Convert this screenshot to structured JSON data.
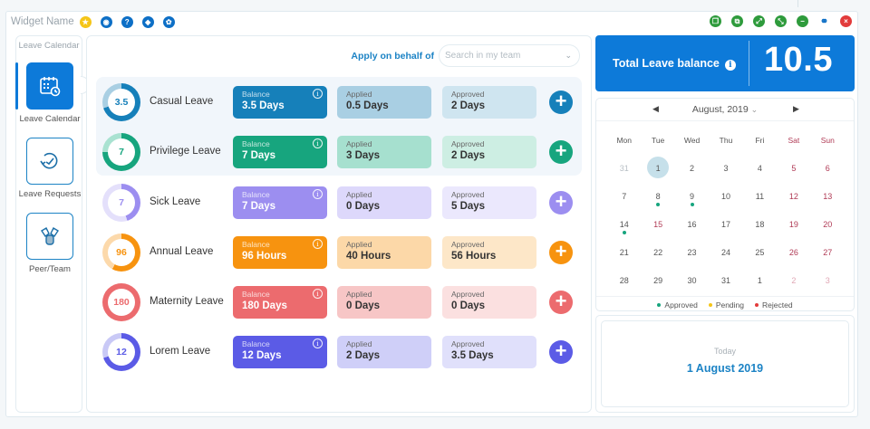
{
  "window": {
    "title": "Widget Name",
    "left_icons": [
      {
        "name": "favorite-icon",
        "color": "#f5c518",
        "glyph": "★"
      },
      {
        "name": "camera-icon",
        "color": "#0d6fc6",
        "glyph": "◉"
      },
      {
        "name": "help-icon",
        "color": "#0d6fc6",
        "glyph": "?"
      },
      {
        "name": "tag-icon",
        "color": "#0d6fc6",
        "glyph": "◆"
      },
      {
        "name": "settings-icon",
        "color": "#0d6fc6",
        "glyph": "✿"
      }
    ],
    "right_icons": [
      {
        "name": "restore-icon",
        "color": "#2e9b3c",
        "glyph": "❐"
      },
      {
        "name": "copy-icon",
        "color": "#2e9b3c",
        "glyph": "⧉"
      },
      {
        "name": "expand-icon",
        "color": "#2e9b3c",
        "glyph": "⤢"
      },
      {
        "name": "collapse-icon",
        "color": "#2e9b3c",
        "glyph": "⤡"
      },
      {
        "name": "minimize-icon",
        "color": "#2e9b3c",
        "glyph": "−"
      },
      {
        "name": "link-icon",
        "color": "#ffffff",
        "glyph": "⚭"
      },
      {
        "name": "close-icon",
        "color": "#e23b3b",
        "glyph": "×"
      }
    ]
  },
  "sidebar": {
    "title": "Leave Calendar",
    "items": [
      {
        "label": "Leave Calendar",
        "active": true
      },
      {
        "label": "Leave Requests",
        "active": false
      },
      {
        "label": "Peer/Team",
        "active": false
      }
    ]
  },
  "main": {
    "apply_label": "Apply on behalf of",
    "search_placeholder": "Search in my team",
    "labels": {
      "balance": "Balance",
      "applied": "Applied",
      "approved": "Approved"
    },
    "leaves": [
      {
        "name": "Casual Leave",
        "ring_value": "3.5",
        "balance": "3.5 Days",
        "applied": "0.5 Days",
        "approved": "2 Days",
        "color": "#1680ba",
        "ring_light": "#a9cfe3",
        "applied_bg": "#a9cfe3",
        "approved_bg": "#cfe5f0",
        "ring_pct": 70
      },
      {
        "name": "Privilege Leave",
        "ring_value": "7",
        "balance": "7 Days",
        "applied": "3 Days",
        "approved": "2 Days",
        "color": "#17a57e",
        "ring_light": "#a9e2d1",
        "applied_bg": "#a6e0cf",
        "approved_bg": "#cdeee3",
        "ring_pct": 75
      },
      {
        "name": "Sick Leave",
        "ring_value": "7",
        "balance": "7 Days",
        "applied": "0 Days",
        "approved": "5 Days",
        "color": "#9c8ef0",
        "ring_light": "#e4e0fb",
        "applied_bg": "#ddd8fb",
        "approved_bg": "#ebe8fd",
        "ring_pct": 45
      },
      {
        "name": "Annual Leave",
        "ring_value": "96",
        "balance": "96 Hours",
        "applied": "40 Hours",
        "approved": "56 Hours",
        "color": "#f7930f",
        "ring_light": "#fcd9ab",
        "applied_bg": "#fcd8a8",
        "approved_bg": "#fde7c8",
        "ring_pct": 58
      },
      {
        "name": "Maternity Leave",
        "ring_value": "180",
        "balance": "180 Days",
        "applied": "0 Days",
        "approved": "0 Days",
        "color": "#ec6b6e",
        "ring_light": "#f7c4c5",
        "applied_bg": "#f7c6c6",
        "approved_bg": "#fbe0e0",
        "ring_pct": 100
      },
      {
        "name": "Lorem Leave",
        "ring_value": "12",
        "balance": "12 Days",
        "applied": "2 Days",
        "approved": "3.5 Days",
        "color": "#5b5be6",
        "ring_light": "#c9c9f6",
        "applied_bg": "#cfcff8",
        "approved_bg": "#e0e0fb",
        "ring_pct": 70
      }
    ]
  },
  "summary": {
    "total_label": "Total Leave balance",
    "total_value": "10.5"
  },
  "calendar": {
    "month_label": "August, 2019",
    "weekdays": [
      "Mon",
      "Tue",
      "Wed",
      "Thu",
      "Fri",
      "Sat",
      "Sun"
    ],
    "weeks": [
      [
        {
          "d": "31",
          "t": "muted"
        },
        {
          "d": "1",
          "t": "today"
        },
        {
          "d": "2"
        },
        {
          "d": "3"
        },
        {
          "d": "4"
        },
        {
          "d": "5",
          "t": "wk"
        },
        {
          "d": "6",
          "t": "wk"
        }
      ],
      [
        {
          "d": "7"
        },
        {
          "d": "8",
          "dot": "approved"
        },
        {
          "d": "9",
          "dot": "approved"
        },
        {
          "d": "10"
        },
        {
          "d": "11"
        },
        {
          "d": "12",
          "t": "wk"
        },
        {
          "d": "13",
          "t": "wk"
        }
      ],
      [
        {
          "d": "14",
          "dot": "approved"
        },
        {
          "d": "15",
          "t": "wk"
        },
        {
          "d": "16"
        },
        {
          "d": "17"
        },
        {
          "d": "18"
        },
        {
          "d": "19",
          "t": "wk"
        },
        {
          "d": "20",
          "t": "wk"
        }
      ],
      [
        {
          "d": "21"
        },
        {
          "d": "22"
        },
        {
          "d": "23"
        },
        {
          "d": "24"
        },
        {
          "d": "25"
        },
        {
          "d": "26",
          "t": "wk"
        },
        {
          "d": "27",
          "t": "wk"
        }
      ],
      [
        {
          "d": "28"
        },
        {
          "d": "29"
        },
        {
          "d": "30"
        },
        {
          "d": "31"
        },
        {
          "d": "1"
        },
        {
          "d": "2",
          "t": "wkmuted"
        },
        {
          "d": "3",
          "t": "wkmuted"
        }
      ]
    ],
    "legend": [
      {
        "label": "Approved",
        "color": "#17a57e"
      },
      {
        "label": "Pending",
        "color": "#f5c518"
      },
      {
        "label": "Rejected",
        "color": "#e23b3b"
      }
    ]
  },
  "today": {
    "label": "Today",
    "date": "1 August 2019"
  }
}
